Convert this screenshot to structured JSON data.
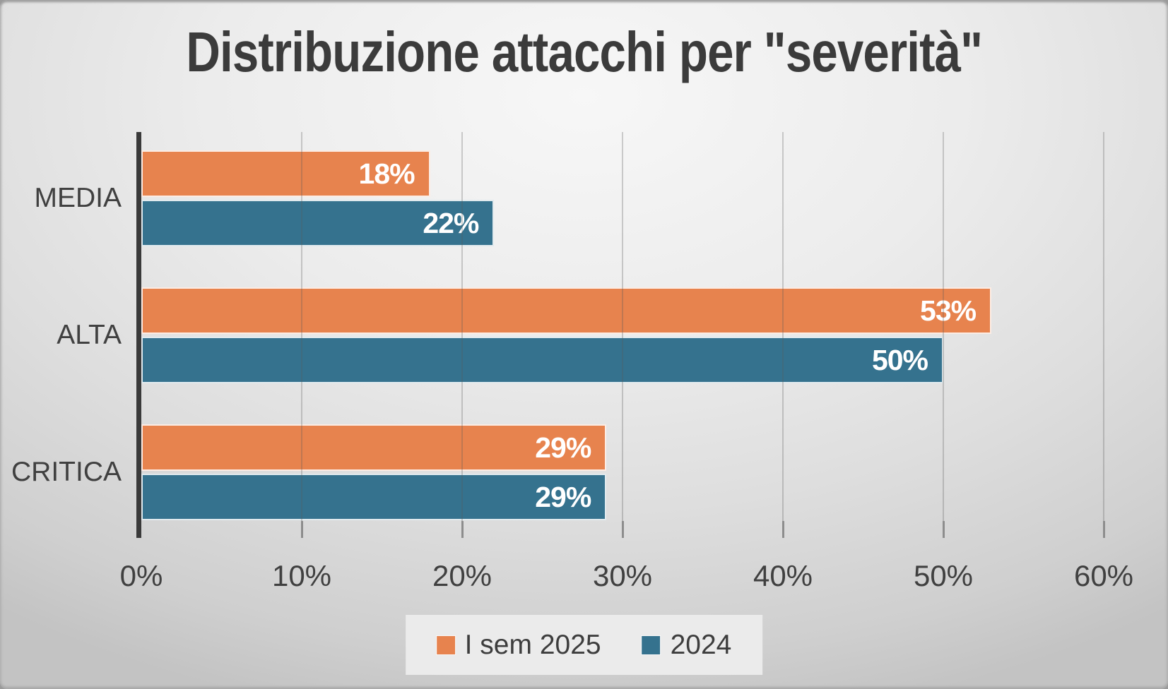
{
  "chart_data": {
    "type": "bar",
    "orientation": "horizontal",
    "title": "Distribuzione attacchi per \"severità\"",
    "categories": [
      "MEDIA",
      "ALTA",
      "CRITICA"
    ],
    "series": [
      {
        "name": "I sem 2025",
        "color": "#E7834E",
        "values": [
          18,
          53,
          29
        ],
        "data_labels": [
          "18%",
          "53%",
          "29%"
        ]
      },
      {
        "name": "2024",
        "color": "#35728E",
        "values": [
          22,
          50,
          29
        ],
        "data_labels": [
          "22%",
          "50%",
          "29%"
        ]
      }
    ],
    "x_axis": {
      "min": 0,
      "max": 60,
      "tick_step": 10,
      "tick_labels": [
        "0%",
        "10%",
        "20%",
        "30%",
        "40%",
        "50%",
        "60%"
      ],
      "grid": true
    },
    "legend_position": "bottom-center",
    "colors": {
      "title_text": "#3B3B3B",
      "axis_text": "#404040",
      "value_label_text": "#FFFFFF",
      "category_axis_line": "#3A3A3A",
      "gridline": "#B3B3B3",
      "legend_background": "#EBEBEB",
      "slide_background": "#DCDCDC"
    }
  }
}
